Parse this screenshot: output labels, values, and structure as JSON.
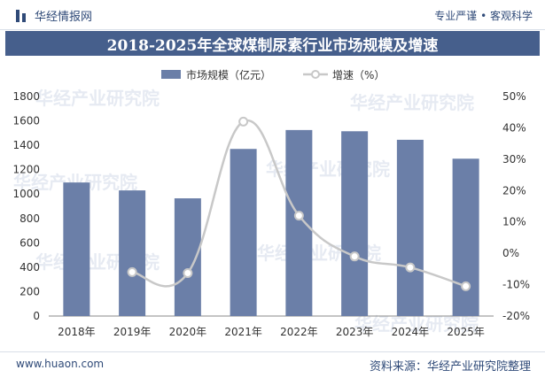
{
  "header": {
    "brand": "华经情报网",
    "slogan": "专业严谨 • 客观科学"
  },
  "title": "2018-2025年全球煤制尿素行业市场规模及增速",
  "footer": {
    "website": "www.huaon.com",
    "source": "资料来源：华经产业研究院整理"
  },
  "watermark": "华经产业研究院",
  "chart_data": {
    "type": "bar",
    "categories": [
      "2018年",
      "2019年",
      "2020年",
      "2021年",
      "2022年",
      "2023年",
      "2024年",
      "2025年"
    ],
    "series": [
      {
        "name": "市场规模（亿元）",
        "type": "bar",
        "axis": "left",
        "color": "#6b7fa8",
        "values": [
          1095,
          1030,
          965,
          1370,
          1525,
          1515,
          1445,
          1290
        ]
      },
      {
        "name": "增速（%）",
        "type": "line",
        "axis": "right",
        "color": "#c8c8c8",
        "values": [
          null,
          -6,
          -6.3,
          42,
          12,
          -1,
          -4.5,
          -10.5
        ]
      }
    ],
    "y_left": {
      "min": 0,
      "max": 1800,
      "ticks": [
        0,
        200,
        400,
        600,
        800,
        1000,
        1200,
        1400,
        1600,
        1800
      ]
    },
    "y_right": {
      "min": -20,
      "max": 50,
      "ticks": [
        "-20%",
        "-10%",
        "0%",
        "10%",
        "20%",
        "30%",
        "40%",
        "50%"
      ]
    },
    "legend_position": "top"
  }
}
